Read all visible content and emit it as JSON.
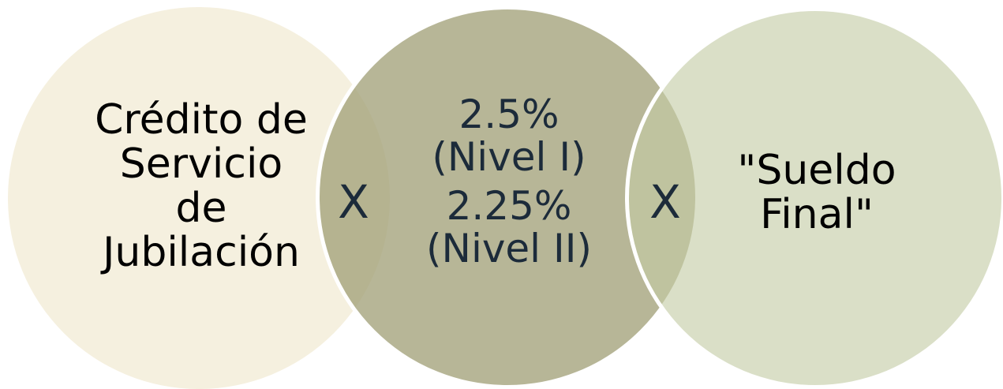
{
  "diagram": {
    "left": {
      "lines": [
        "Crédito de",
        "Servicio",
        "de",
        "Jubilación"
      ]
    },
    "middle": {
      "tier1": {
        "rate": "2.5%",
        "level": "(Nivel I)"
      },
      "tier2": {
        "rate": "2.25%",
        "level": "(Nivel II)"
      }
    },
    "right": {
      "lines": [
        "\"Sueldo",
        "Final\""
      ]
    },
    "operators": [
      "X",
      "X"
    ],
    "colors": {
      "left_circle": "#f5f0df",
      "middle_circle": "#a3a27a",
      "right_circle": "#c4cba5",
      "dark_text": "#1c2b3a"
    }
  }
}
